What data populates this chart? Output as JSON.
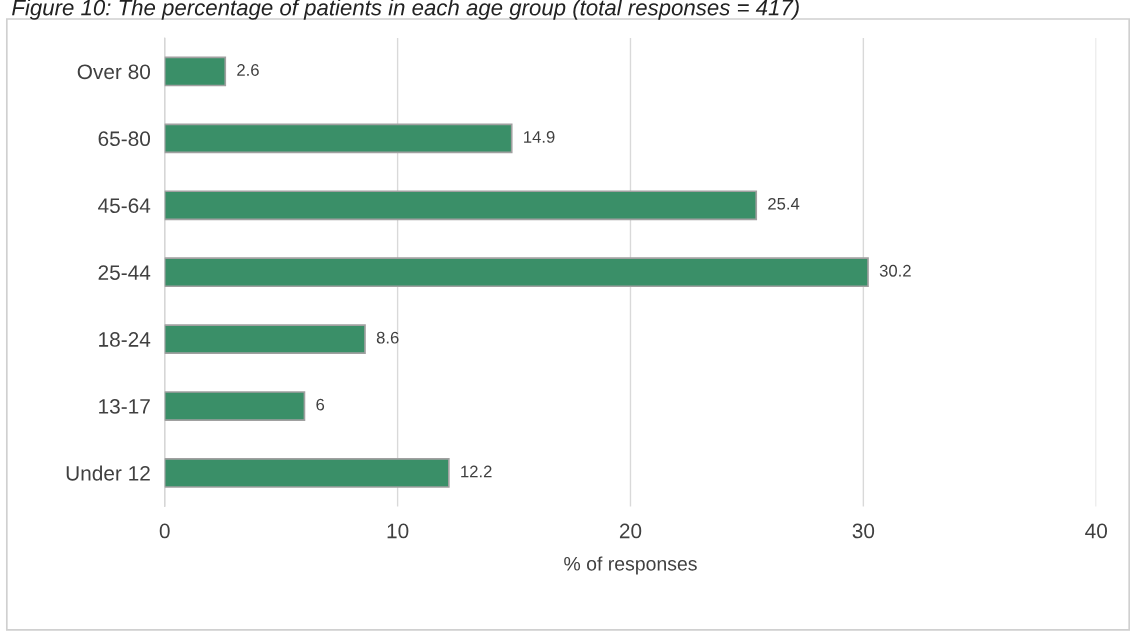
{
  "chart_data": {
    "type": "bar",
    "orientation": "horizontal",
    "title": "Figure 10: The percentage of patients in each age group (total responses = 417)",
    "categories": [
      "Over 80",
      "65-80",
      "45-64",
      "25-44",
      "18-24",
      "13-17",
      "Under 12"
    ],
    "values": [
      2.6,
      14.9,
      25.4,
      30.2,
      8.6,
      6,
      12.2
    ],
    "color": "#3a8f68",
    "xlabel": "% of responses",
    "xlim": [
      0,
      40
    ],
    "xticks": [
      0,
      10,
      20,
      30,
      40
    ],
    "grid": "x",
    "data_labels": true
  }
}
